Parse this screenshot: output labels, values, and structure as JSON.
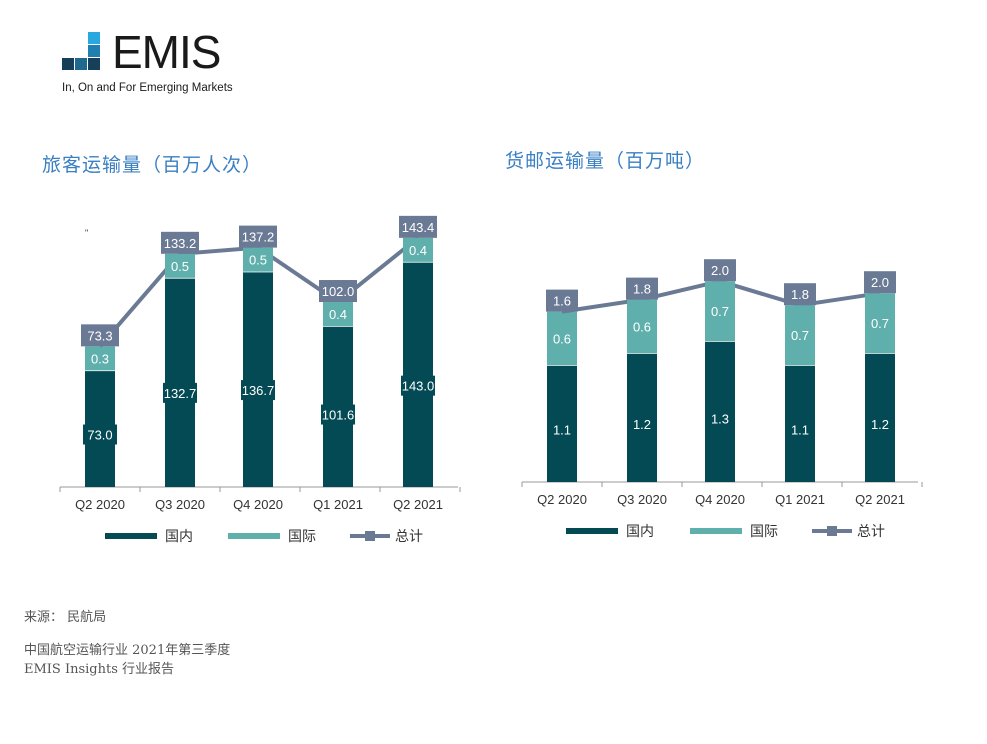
{
  "logo": {
    "word": "EMIS",
    "tagline": "In, On and For Emerging Markets"
  },
  "colors": {
    "domestic": "#034a55",
    "international": "#5fb0ad",
    "total": "#6a7a94",
    "title": "#3a7fc4"
  },
  "chart_data": [
    {
      "type": "bar",
      "stacked": true,
      "title": "旅客运输量（百万人次）",
      "categories": [
        "Q2 2020",
        "Q3 2020",
        "Q4 2020",
        "Q1 2021",
        "Q2 2021"
      ],
      "series": [
        {
          "name": "国内",
          "kind": "bar",
          "values": [
            73.0,
            132.7,
            136.7,
            101.6,
            143.0
          ]
        },
        {
          "name": "国际",
          "kind": "bar",
          "values": [
            0.3,
            0.5,
            0.5,
            0.4,
            0.4
          ]
        },
        {
          "name": "总计",
          "kind": "line",
          "values": [
            73.3,
            133.2,
            137.2,
            102.0,
            143.4
          ]
        }
      ],
      "legend": "bottom",
      "grid": false
    },
    {
      "type": "bar",
      "stacked": true,
      "title": "货邮运输量（百万吨）",
      "categories": [
        "Q2 2020",
        "Q3 2020",
        "Q4 2020",
        "Q1 2021",
        "Q2 2021"
      ],
      "series": [
        {
          "name": "国内",
          "kind": "bar",
          "values": [
            1.1,
            1.2,
            1.3,
            1.1,
            1.2
          ]
        },
        {
          "name": "国际",
          "kind": "bar",
          "values": [
            0.6,
            0.6,
            0.7,
            0.7,
            0.7
          ]
        },
        {
          "name": "总计",
          "kind": "line",
          "values": [
            1.6,
            1.8,
            2.0,
            1.8,
            2.0
          ]
        }
      ],
      "legend": "bottom",
      "grid": false
    }
  ],
  "footer": {
    "source": "来源：  民航局",
    "report_title": "中国航空运输行业 2021年第三季度",
    "report_sub": "EMIS Insights 行业报告"
  }
}
